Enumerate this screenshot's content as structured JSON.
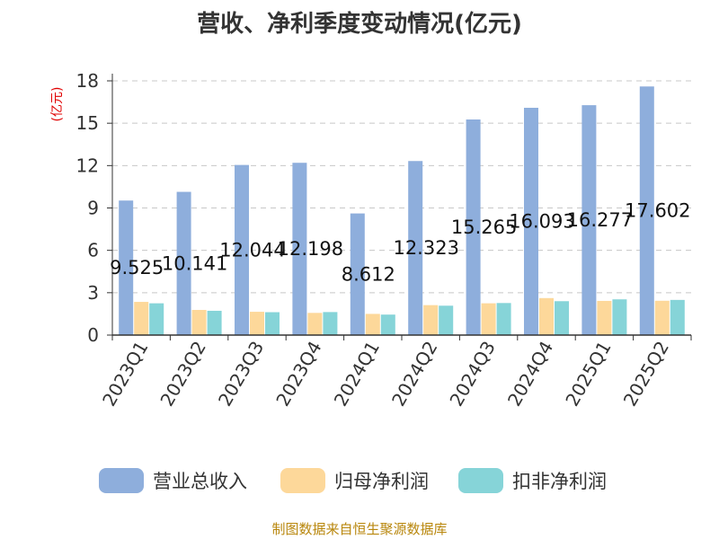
{
  "chart_data": {
    "type": "bar",
    "title": "营收、净利季度变动情况(亿元)",
    "ylabel": "(亿元)",
    "xlabel": "",
    "ylim": [
      0,
      18
    ],
    "yticks": [
      "0",
      "3",
      "6",
      "9",
      "12",
      "15",
      "18"
    ],
    "grid": true,
    "legend_position": "bottom",
    "categories": [
      "2023Q1",
      "2023Q2",
      "2023Q3",
      "2023Q4",
      "2024Q1",
      "2024Q2",
      "2024Q3",
      "2024Q4",
      "2025Q1",
      "2025Q2"
    ],
    "series": [
      {
        "name": "营业总收入",
        "color": "#8eaedc",
        "values": [
          9.525,
          10.141,
          12.044,
          12.198,
          8.612,
          12.323,
          15.265,
          16.093,
          16.277,
          17.602
        ],
        "data_labels": [
          "9.525",
          "10.141",
          "12.044",
          "12.198",
          "8.612",
          "12.323",
          "15.265",
          "16.093",
          "16.277",
          "17.602"
        ]
      },
      {
        "name": "归母净利润",
        "color": "#fdd89a",
        "values": [
          2.35,
          1.78,
          1.65,
          1.57,
          1.5,
          2.12,
          2.25,
          2.62,
          2.42,
          2.43
        ]
      },
      {
        "name": "扣非净利润",
        "color": "#86d4d8",
        "values": [
          2.25,
          1.72,
          1.62,
          1.63,
          1.45,
          2.08,
          2.27,
          2.4,
          2.53,
          2.49
        ]
      }
    ]
  },
  "source": "制图数据来自恒生聚源数据库"
}
